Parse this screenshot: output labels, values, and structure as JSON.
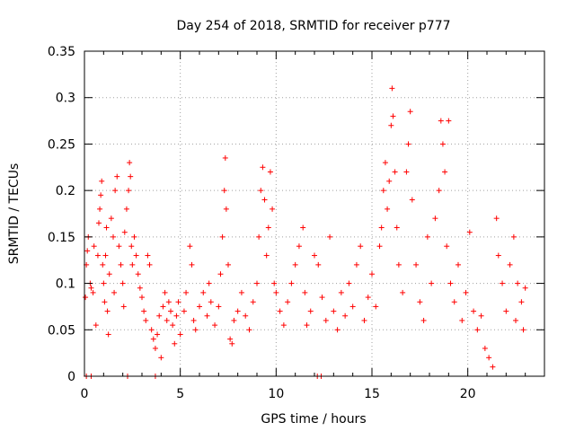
{
  "chart_data": {
    "type": "scatter",
    "title": "Day 254 of 2018, SRMTID for receiver p777",
    "xlabel": "GPS time / hours",
    "ylabel": "SRMTID / TECUs",
    "xlim": [
      0,
      24
    ],
    "ylim": [
      0,
      0.35
    ],
    "grid": true,
    "marker": "+",
    "marker_color": "#ff0000",
    "x_ticks": [
      0,
      5,
      10,
      15,
      20
    ],
    "x_tick_labels": [
      "0",
      "5",
      "10",
      "15",
      "20"
    ],
    "y_ticks": [
      0,
      0.05,
      0.1,
      0.15,
      0.2,
      0.25,
      0.3,
      0.35
    ],
    "y_tick_labels": [
      "0",
      "0.05",
      "0.1",
      "0.15",
      "0.2",
      "0.25",
      "0.3",
      "0.35"
    ],
    "series": [
      {
        "name": "SRMTID",
        "points": [
          [
            0.05,
            0.085
          ],
          [
            0.1,
            0.12
          ],
          [
            0.15,
            0.135
          ],
          [
            0.2,
            0.15
          ],
          [
            0.3,
            0.1
          ],
          [
            0.35,
            0.095
          ],
          [
            0.45,
            0.09
          ],
          [
            0.5,
            0.14
          ],
          [
            0.6,
            0.055
          ],
          [
            0.7,
            0.13
          ],
          [
            0.75,
            0.165
          ],
          [
            0.8,
            0.18
          ],
          [
            0.85,
            0.195
          ],
          [
            0.9,
            0.21
          ],
          [
            0.95,
            0.12
          ],
          [
            1.0,
            0.1
          ],
          [
            1.05,
            0.08
          ],
          [
            1.1,
            0.13
          ],
          [
            1.15,
            0.16
          ],
          [
            1.2,
            0.07
          ],
          [
            1.25,
            0.045
          ],
          [
            1.3,
            0.11
          ],
          [
            1.4,
            0.17
          ],
          [
            1.5,
            0.15
          ],
          [
            1.55,
            0.09
          ],
          [
            1.6,
            0.2
          ],
          [
            1.7,
            0.215
          ],
          [
            1.8,
            0.14
          ],
          [
            1.9,
            0.12
          ],
          [
            2.0,
            0.1
          ],
          [
            2.05,
            0.075
          ],
          [
            2.1,
            0.155
          ],
          [
            2.2,
            0.18
          ],
          [
            2.3,
            0.2
          ],
          [
            2.35,
            0.23
          ],
          [
            2.4,
            0.215
          ],
          [
            2.45,
            0.14
          ],
          [
            2.5,
            0.12
          ],
          [
            2.6,
            0.15
          ],
          [
            2.7,
            0.13
          ],
          [
            2.8,
            0.11
          ],
          [
            2.9,
            0.095
          ],
          [
            3.0,
            0.085
          ],
          [
            3.1,
            0.07
          ],
          [
            3.2,
            0.06
          ],
          [
            3.3,
            0.13
          ],
          [
            3.4,
            0.12
          ],
          [
            3.5,
            0.05
          ],
          [
            3.6,
            0.04
          ],
          [
            3.7,
            0.03
          ],
          [
            3.8,
            0.045
          ],
          [
            3.9,
            0.065
          ],
          [
            4.0,
            0.02
          ],
          [
            4.1,
            0.075
          ],
          [
            4.2,
            0.09
          ],
          [
            4.3,
            0.06
          ],
          [
            4.4,
            0.08
          ],
          [
            4.5,
            0.07
          ],
          [
            4.6,
            0.055
          ],
          [
            4.7,
            0.035
          ],
          [
            4.8,
            0.065
          ],
          [
            4.9,
            0.08
          ],
          [
            5.0,
            0.045
          ],
          [
            5.2,
            0.07
          ],
          [
            5.3,
            0.09
          ],
          [
            5.5,
            0.14
          ],
          [
            5.6,
            0.12
          ],
          [
            5.7,
            0.06
          ],
          [
            5.8,
            0.05
          ],
          [
            6.0,
            0.075
          ],
          [
            6.2,
            0.09
          ],
          [
            6.4,
            0.065
          ],
          [
            6.5,
            0.1
          ],
          [
            6.6,
            0.08
          ],
          [
            6.8,
            0.055
          ],
          [
            7.0,
            0.075
          ],
          [
            7.1,
            0.11
          ],
          [
            7.2,
            0.15
          ],
          [
            7.3,
            0.2
          ],
          [
            7.35,
            0.235
          ],
          [
            7.4,
            0.18
          ],
          [
            7.5,
            0.12
          ],
          [
            7.6,
            0.04
          ],
          [
            7.7,
            0.035
          ],
          [
            7.8,
            0.06
          ],
          [
            8.0,
            0.07
          ],
          [
            8.2,
            0.09
          ],
          [
            8.4,
            0.065
          ],
          [
            8.6,
            0.05
          ],
          [
            8.8,
            0.08
          ],
          [
            9.0,
            0.1
          ],
          [
            9.1,
            0.15
          ],
          [
            9.2,
            0.2
          ],
          [
            9.3,
            0.225
          ],
          [
            9.4,
            0.19
          ],
          [
            9.5,
            0.13
          ],
          [
            9.6,
            0.16
          ],
          [
            9.7,
            0.22
          ],
          [
            9.8,
            0.18
          ],
          [
            9.9,
            0.1
          ],
          [
            10.0,
            0.09
          ],
          [
            10.2,
            0.07
          ],
          [
            10.4,
            0.055
          ],
          [
            10.6,
            0.08
          ],
          [
            10.8,
            0.1
          ],
          [
            11.0,
            0.12
          ],
          [
            11.2,
            0.14
          ],
          [
            11.4,
            0.16
          ],
          [
            11.5,
            0.09
          ],
          [
            11.6,
            0.055
          ],
          [
            11.8,
            0.07
          ],
          [
            12.0,
            0.13
          ],
          [
            12.2,
            0.12
          ],
          [
            12.4,
            0.085
          ],
          [
            12.6,
            0.06
          ],
          [
            12.8,
            0.15
          ],
          [
            13.0,
            0.07
          ],
          [
            13.2,
            0.05
          ],
          [
            13.4,
            0.09
          ],
          [
            13.6,
            0.065
          ],
          [
            13.8,
            0.1
          ],
          [
            14.0,
            0.075
          ],
          [
            14.2,
            0.12
          ],
          [
            14.4,
            0.14
          ],
          [
            14.6,
            0.06
          ],
          [
            14.8,
            0.085
          ],
          [
            15.0,
            0.11
          ],
          [
            15.2,
            0.075
          ],
          [
            15.4,
            0.14
          ],
          [
            15.5,
            0.16
          ],
          [
            15.6,
            0.2
          ],
          [
            15.7,
            0.23
          ],
          [
            15.8,
            0.18
          ],
          [
            15.9,
            0.21
          ],
          [
            16.0,
            0.27
          ],
          [
            16.05,
            0.31
          ],
          [
            16.1,
            0.28
          ],
          [
            16.2,
            0.22
          ],
          [
            16.3,
            0.16
          ],
          [
            16.4,
            0.12
          ],
          [
            16.6,
            0.09
          ],
          [
            16.8,
            0.22
          ],
          [
            16.9,
            0.25
          ],
          [
            17.0,
            0.285
          ],
          [
            17.1,
            0.19
          ],
          [
            17.3,
            0.12
          ],
          [
            17.5,
            0.08
          ],
          [
            17.7,
            0.06
          ],
          [
            17.9,
            0.15
          ],
          [
            18.1,
            0.1
          ],
          [
            18.3,
            0.17
          ],
          [
            18.5,
            0.2
          ],
          [
            18.6,
            0.275
          ],
          [
            18.7,
            0.25
          ],
          [
            18.8,
            0.22
          ],
          [
            18.9,
            0.14
          ],
          [
            19.0,
            0.275
          ],
          [
            19.1,
            0.1
          ],
          [
            19.3,
            0.08
          ],
          [
            19.5,
            0.12
          ],
          [
            19.7,
            0.06
          ],
          [
            19.9,
            0.09
          ],
          [
            20.1,
            0.155
          ],
          [
            20.3,
            0.07
          ],
          [
            20.5,
            0.05
          ],
          [
            20.7,
            0.065
          ],
          [
            20.9,
            0.03
          ],
          [
            21.1,
            0.02
          ],
          [
            21.3,
            0.01
          ],
          [
            21.5,
            0.17
          ],
          [
            21.6,
            0.13
          ],
          [
            21.8,
            0.1
          ],
          [
            22.0,
            0.07
          ],
          [
            22.2,
            0.12
          ],
          [
            22.4,
            0.15
          ],
          [
            22.5,
            0.06
          ],
          [
            22.6,
            0.1
          ],
          [
            22.8,
            0.08
          ],
          [
            22.9,
            0.05
          ],
          [
            23.0,
            0.095
          ],
          [
            0.1,
            0.0
          ],
          [
            0.35,
            0.0
          ],
          [
            2.25,
            0.0
          ],
          [
            3.7,
            0.0
          ],
          [
            12.15,
            0.0
          ],
          [
            12.35,
            0.0
          ]
        ]
      }
    ]
  }
}
